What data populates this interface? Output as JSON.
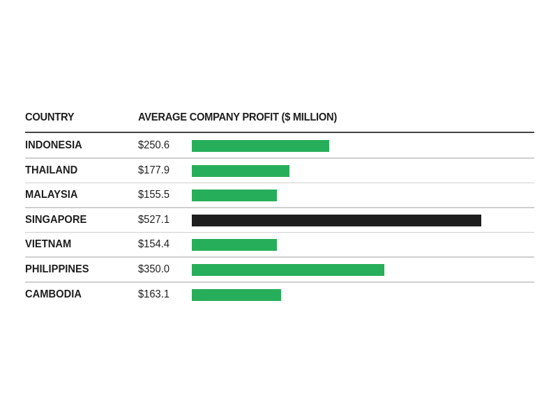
{
  "chart_data": {
    "type": "bar",
    "orientation": "horizontal",
    "column_headers": [
      "COUNTRY",
      "AVERAGE COMPANY PROFIT ($ MILLION)"
    ],
    "categories": [
      "INDONESIA",
      "THAILAND",
      "MALAYSIA",
      "SINGAPORE",
      "VIETNAM",
      "PHILIPPINES",
      "CAMBODIA"
    ],
    "values": [
      250.6,
      177.9,
      155.5,
      527.1,
      154.4,
      350.0,
      163.1
    ],
    "value_labels": [
      "$250.6",
      "$177.9",
      "$155.5",
      "$527.1",
      "$154.4",
      "$350.0",
      "$163.1"
    ],
    "colors": {
      "default": "#27ae5a",
      "highlight": "#1e1e1e"
    },
    "highlight_category": "SINGAPORE",
    "grid": false
  }
}
